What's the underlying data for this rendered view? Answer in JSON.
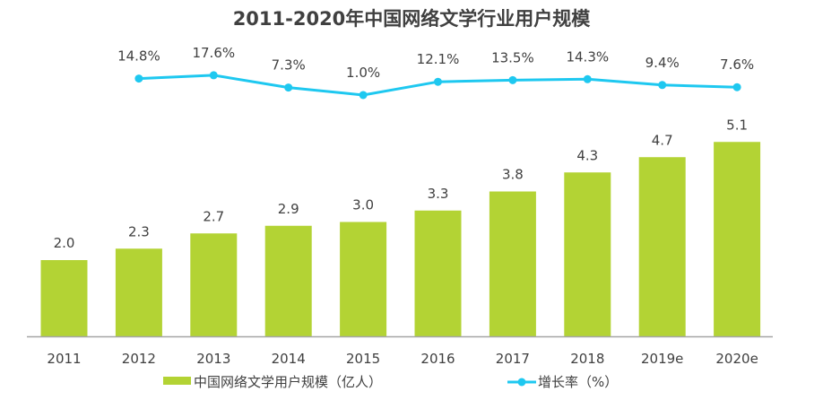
{
  "chart_data": {
    "type": "bar+line",
    "title": "2011-2020年中国网络文学行业用户规模",
    "categories": [
      "2011",
      "2012",
      "2013",
      "2014",
      "2015",
      "2016",
      "2017",
      "2018",
      "2019e",
      "2020e"
    ],
    "series": [
      {
        "name": "中国网络文学用户规模（亿人）",
        "type": "bar",
        "color": "#b3d334",
        "values": [
          2.0,
          2.3,
          2.7,
          2.9,
          3.0,
          3.3,
          3.8,
          4.3,
          4.7,
          5.1
        ],
        "labels": [
          "2.0",
          "2.3",
          "2.7",
          "2.9",
          "3.0",
          "3.3",
          "3.8",
          "4.3",
          "4.7",
          "5.1"
        ]
      },
      {
        "name": "增长率（%）",
        "type": "line",
        "color": "#1ec8f0",
        "values": [
          null,
          14.8,
          17.6,
          7.3,
          1.0,
          12.1,
          13.5,
          14.3,
          9.4,
          7.6
        ],
        "labels": [
          "",
          "14.8%",
          "17.6%",
          "7.3%",
          "1.0%",
          "12.1%",
          "13.5%",
          "14.3%",
          "9.4%",
          "7.6%"
        ]
      }
    ],
    "legend": "bottom",
    "grid": false
  }
}
